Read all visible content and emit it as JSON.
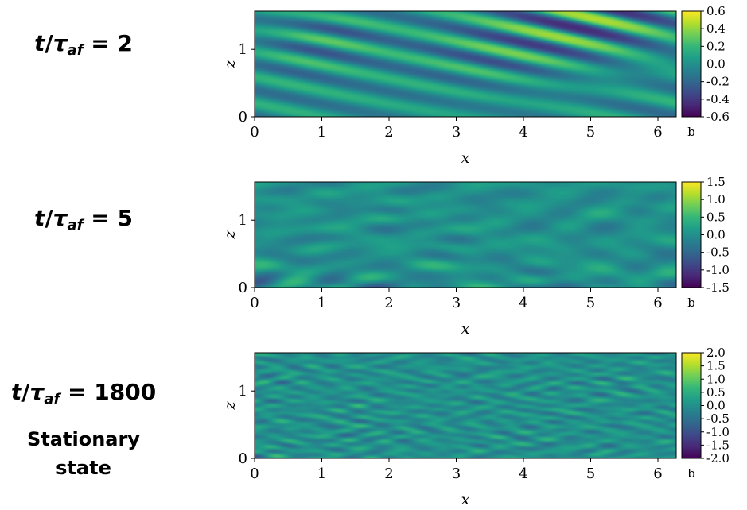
{
  "labels": {
    "row1_time": "t/τaf = 2",
    "row2_time": "t/τaf = 5",
    "row3_time": "t/τaf = 1800",
    "row3_state_line1": "Stationary",
    "row3_state_line2": "state"
  },
  "colors": {
    "viridis": [
      "#440154",
      "#482878",
      "#3e4989",
      "#31688e",
      "#26828e",
      "#1f9e89",
      "#35b779",
      "#6ece58",
      "#b5de2b",
      "#fde725"
    ]
  },
  "chart_data": [
    {
      "type": "heatmap",
      "title": "t/τaf = 2",
      "xlabel": "x",
      "ylabel": "z",
      "xlim": [
        0,
        6.28
      ],
      "ylim": [
        0,
        1.57
      ],
      "xticks": [
        "0",
        "1",
        "2",
        "3",
        "4",
        "5",
        "6"
      ],
      "yticks": [
        "0",
        "1"
      ],
      "colorbar_label": "b",
      "colorbar_range": [
        -0.6,
        0.6
      ],
      "colorbar_ticks": [
        "0.6",
        "0.4",
        "0.2",
        "0.0",
        "-0.2",
        "-0.4",
        "-0.6"
      ],
      "pattern": "diagonal-waves"
    },
    {
      "type": "heatmap",
      "title": "t/τaf = 5",
      "xlabel": "x",
      "ylabel": "z",
      "xlim": [
        0,
        6.28
      ],
      "ylim": [
        0,
        1.57
      ],
      "xticks": [
        "0",
        "1",
        "2",
        "3",
        "4",
        "5",
        "6"
      ],
      "yticks": [
        "0",
        "1"
      ],
      "colorbar_label": "b",
      "colorbar_range": [
        -1.5,
        1.5
      ],
      "colorbar_ticks": [
        "1.5",
        "1.0",
        "0.5",
        "0.0",
        "-0.5",
        "-1.0",
        "-1.5"
      ],
      "pattern": "wave-breaking"
    },
    {
      "type": "heatmap",
      "title": "t/τaf = 1800",
      "subtitle": "Stationary state",
      "xlabel": "x",
      "ylabel": "z",
      "xlim": [
        0,
        6.28
      ],
      "ylim": [
        0,
        1.57
      ],
      "xticks": [
        "0",
        "1",
        "2",
        "3",
        "4",
        "5",
        "6"
      ],
      "yticks": [
        "0",
        "1"
      ],
      "colorbar_label": "b",
      "colorbar_range": [
        -2.0,
        2.0
      ],
      "colorbar_ticks": [
        "2.0",
        "1.5",
        "1.0",
        "0.5",
        "0.0",
        "-0.5",
        "-1.0",
        "-1.5",
        "-2.0"
      ],
      "pattern": "turbulent"
    }
  ]
}
